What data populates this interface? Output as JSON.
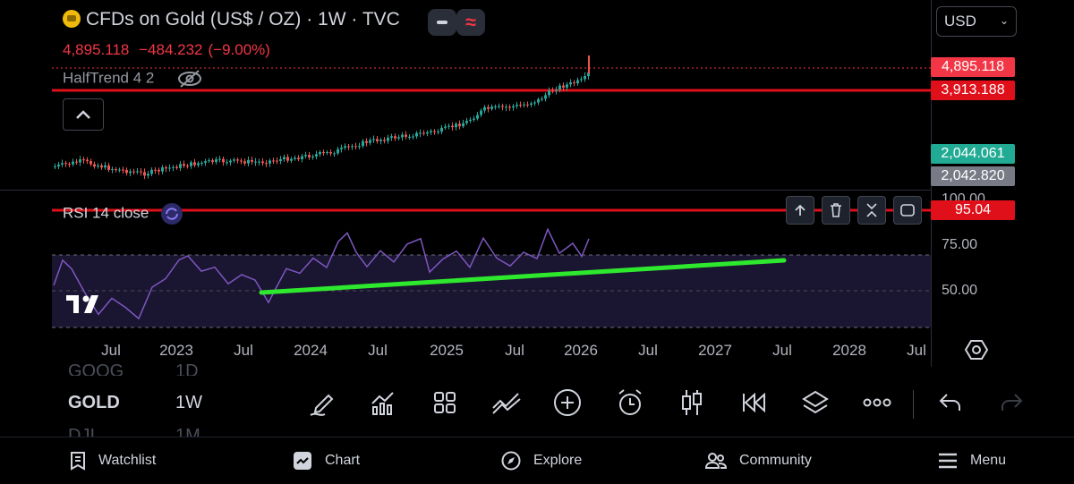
{
  "header": {
    "title": "CFDs on Gold (US$ / OZ) · 1W · TVC",
    "ohlc": {
      "last": "4,895.118",
      "change": "−484.232",
      "change_pct": "(−9.00%)"
    },
    "indicator": "HalfTrend 4 2",
    "currency": "USD"
  },
  "price_scale": {
    "tags": [
      {
        "value": "4,895.118",
        "color": "#f23645"
      },
      {
        "value": "3,913.188",
        "color": "#e0101a"
      },
      {
        "value": "2,044.061",
        "color": "#22ab94"
      },
      {
        "value": "2,042.820",
        "color": "#787b86"
      }
    ],
    "rsi_tag": "95.04",
    "rsi_partial": "100.00",
    "rsi_levels": [
      "75.00",
      "50.00"
    ]
  },
  "rsi": {
    "label": "RSI 14 close"
  },
  "time_axis": [
    "Jul",
    "2023",
    "Jul",
    "2024",
    "Jul",
    "2025",
    "Jul",
    "2026",
    "Jul",
    "2027",
    "Jul",
    "2028",
    "Jul"
  ],
  "watchlist": {
    "prev": {
      "symbol": "GOOG",
      "interval": "1D"
    },
    "current": {
      "symbol": "GOLD",
      "interval": "1W"
    },
    "next": {
      "symbol": "DJI",
      "interval": "1M"
    }
  },
  "toolbar": {
    "icons": [
      "pencil-icon",
      "indicators-icon",
      "grid-icon",
      "compare-icon",
      "add-icon",
      "alert-icon",
      "candles-icon",
      "replay-icon",
      "layers-icon",
      "more-icon",
      "undo-icon",
      "redo-icon"
    ]
  },
  "nav": {
    "watchlist": "Watchlist",
    "chart": "Chart",
    "explore": "Explore",
    "community": "Community",
    "menu": "Menu"
  },
  "colors": {
    "up": "#26a69a",
    "down": "#ef5350",
    "rsi_line": "#7e57c2",
    "trendline": "#2ee82e",
    "halftrend": "#e0101a"
  }
}
